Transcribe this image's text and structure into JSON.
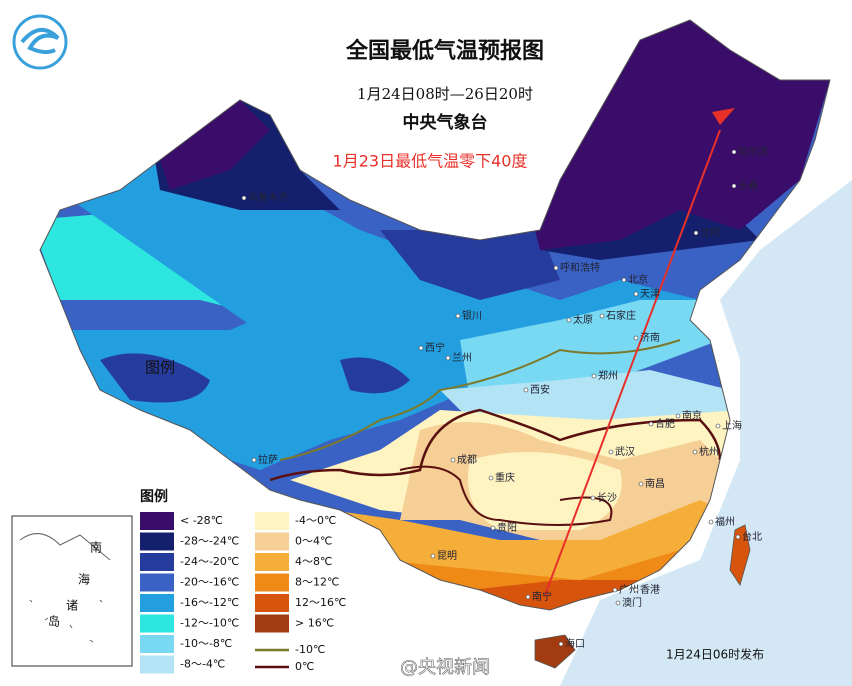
{
  "header": {
    "title": "全国最低气温预报图",
    "subtitle": "1月24日08时—26日20时",
    "agency": "中央气象台"
  },
  "annotation": "1月23日最低气温零下40度",
  "legend": {
    "title": "图例",
    "items": [
      {
        "label": "< -28℃",
        "color": "#3a0d6b"
      },
      {
        "label": "-28～-24℃",
        "color": "#14206e"
      },
      {
        "label": "-24～-20℃",
        "color": "#263c9c"
      },
      {
        "label": "-20～-16℃",
        "color": "#3a62c4"
      },
      {
        "label": "-16～-12℃",
        "color": "#239fe0"
      },
      {
        "label": "-12～-10℃",
        "color": "#2ee6e0"
      },
      {
        "label": "-10～-8℃",
        "color": "#79d8f2"
      },
      {
        "label": "-8～-4℃",
        "color": "#b3e4f6"
      },
      {
        "label": "-4～0℃",
        "color": "#fdf4c2"
      },
      {
        "label": "0～4℃",
        "color": "#f5cf95"
      },
      {
        "label": "4～8℃",
        "color": "#f5ae3a"
      },
      {
        "label": "8～12℃",
        "color": "#ef8a17"
      },
      {
        "label": "12～16℃",
        "color": "#d6540c"
      },
      {
        "label": "> 16℃",
        "color": "#a33b10"
      }
    ],
    "lines": [
      {
        "label": "-10℃",
        "color": "#7c7a2a"
      },
      {
        "label": "0℃",
        "color": "#5a1010"
      }
    ]
  },
  "map_label": "图例",
  "cities": [
    "乌鲁木齐",
    "哈尔滨",
    "长春",
    "沈阳",
    "呼和浩特",
    "北京",
    "天津",
    "银川",
    "太原",
    "石家庄",
    "济南",
    "西宁",
    "兰州",
    "西安",
    "郑州",
    "合肥",
    "南京",
    "上海",
    "成都",
    "武汉",
    "杭州",
    "重庆",
    "长沙",
    "南昌",
    "贵阳",
    "福州",
    "台北",
    "拉萨",
    "昆明",
    "南宁",
    "广州",
    "香港",
    "澳门",
    "海口"
  ],
  "inset": {
    "labels": [
      "南",
      "海",
      "诸",
      "岛"
    ]
  },
  "footer": "1月24日06时发布",
  "watermark": "@央视新闻"
}
